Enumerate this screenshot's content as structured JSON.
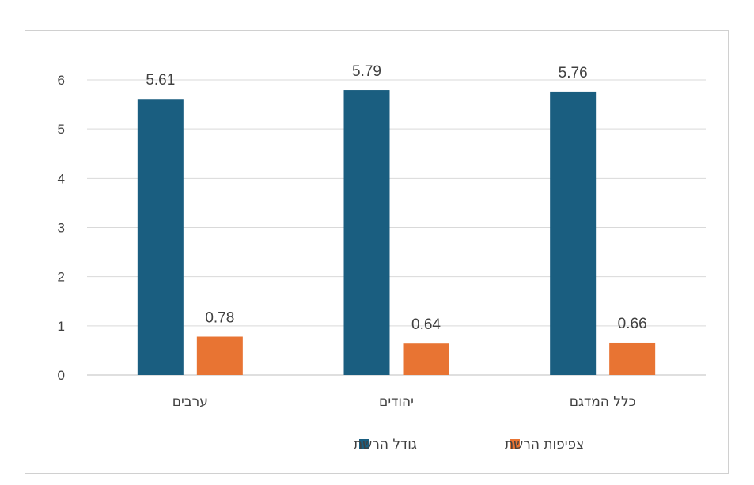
{
  "chart_data": {
    "type": "bar",
    "categories": [
      "ערבים",
      "יהודים",
      "כלל המדגם"
    ],
    "series": [
      {
        "name": "גודל הרשת",
        "color": "#1a5e80",
        "values": [
          5.61,
          5.79,
          5.76
        ]
      },
      {
        "name": "צפיפות הרשת",
        "color": "#e87433",
        "values": [
          0.78,
          0.64,
          0.66
        ]
      }
    ],
    "data_labels": [
      [
        "5.61",
        "5.79",
        "5.76"
      ],
      [
        "0.78",
        "0.64",
        "0.66"
      ]
    ],
    "yticks": [
      "0",
      "1",
      "2",
      "3",
      "4",
      "5",
      "6"
    ],
    "ylim": [
      0,
      6
    ],
    "grid": true,
    "legend_position": "bottom"
  }
}
